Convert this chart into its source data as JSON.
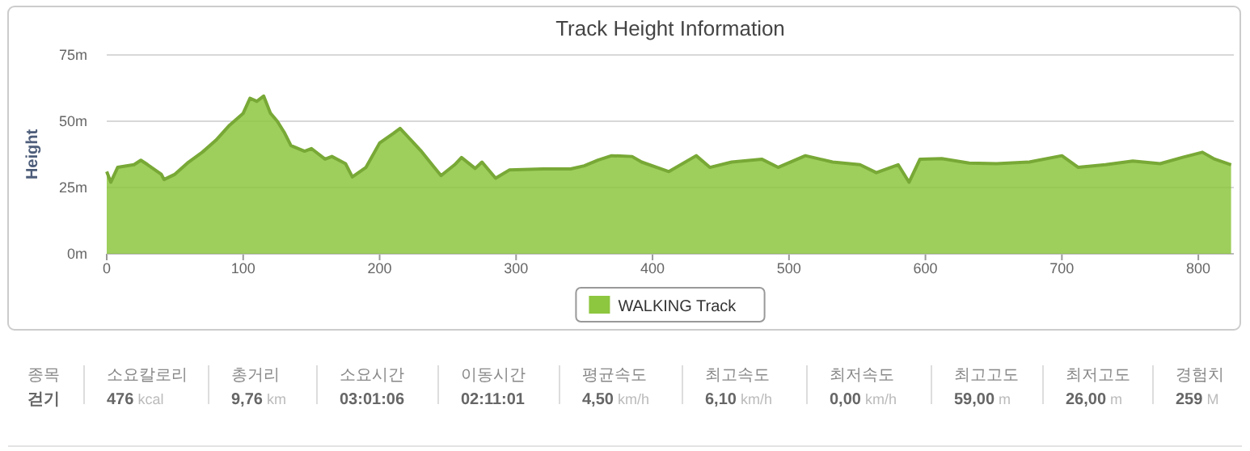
{
  "chart_data": {
    "type": "area",
    "title": "Track Height Information",
    "ylabel": "Height",
    "x": [
      0,
      3,
      8,
      20,
      25,
      30,
      40,
      42,
      50,
      60,
      70,
      80,
      90,
      100,
      105,
      110,
      115,
      120,
      125,
      130,
      135,
      145,
      150,
      160,
      165,
      175,
      180,
      190,
      200,
      210,
      215,
      230,
      240,
      245,
      255,
      260,
      270,
      275,
      285,
      295,
      320,
      340,
      350,
      360,
      370,
      385,
      392,
      412,
      432,
      442,
      458,
      480,
      492,
      512,
      532,
      552,
      564,
      580,
      588,
      596,
      612,
      632,
      652,
      676,
      700,
      712,
      732,
      752,
      772,
      788,
      803,
      812,
      824
    ],
    "series": [
      {
        "name": "WALKING Track",
        "color": "#8dc63f",
        "values": [
          31,
          27,
          32.6,
          33.6,
          35.3,
          33.6,
          30,
          28,
          30,
          34.6,
          38.3,
          42.8,
          48.5,
          53,
          58.7,
          57.5,
          59.5,
          53,
          50,
          45.9,
          40.8,
          38.7,
          39.7,
          35.7,
          36.7,
          34,
          29,
          32.6,
          41.8,
          45.4,
          47.3,
          39,
          32.6,
          29.5,
          33.6,
          36.3,
          32.2,
          34.6,
          28.5,
          31.6,
          32,
          32,
          33.2,
          35.3,
          37,
          36.7,
          34.6,
          31,
          37,
          32.6,
          34.6,
          35.7,
          32.6,
          37,
          34.6,
          33.6,
          30.6,
          33.6,
          27,
          35.7,
          35.9,
          34.2,
          34,
          34.6,
          37,
          32.6,
          33.6,
          35,
          34,
          36.3,
          38.3,
          35.7,
          33.6
        ]
      }
    ],
    "xlim": [
      0,
      826
    ],
    "xticks": [
      0,
      100,
      200,
      300,
      400,
      500,
      600,
      700,
      800
    ],
    "ylim": [
      0,
      75
    ],
    "yticks": [
      {
        "value": 0,
        "label": "0m"
      },
      {
        "value": 25,
        "label": "25m"
      },
      {
        "value": 50,
        "label": "50m"
      },
      {
        "value": 75,
        "label": "75m"
      }
    ],
    "grid": "y",
    "legend": "bottom",
    "annotations": [
      "종목",
      "걷기",
      "소요칼로리",
      "476 kcal",
      "총거리",
      "9,76 km",
      "소요시간",
      "03:01:06",
      "이동시간",
      "02:11:01",
      "평균속도",
      "4,50 km/h",
      "최고속도",
      "6,10 km/h",
      "최저속도",
      "0,00 km/h",
      "최고고도",
      "59,00 m",
      "최저고도",
      "26,00 m",
      "경험치",
      "259 M"
    ]
  }
}
